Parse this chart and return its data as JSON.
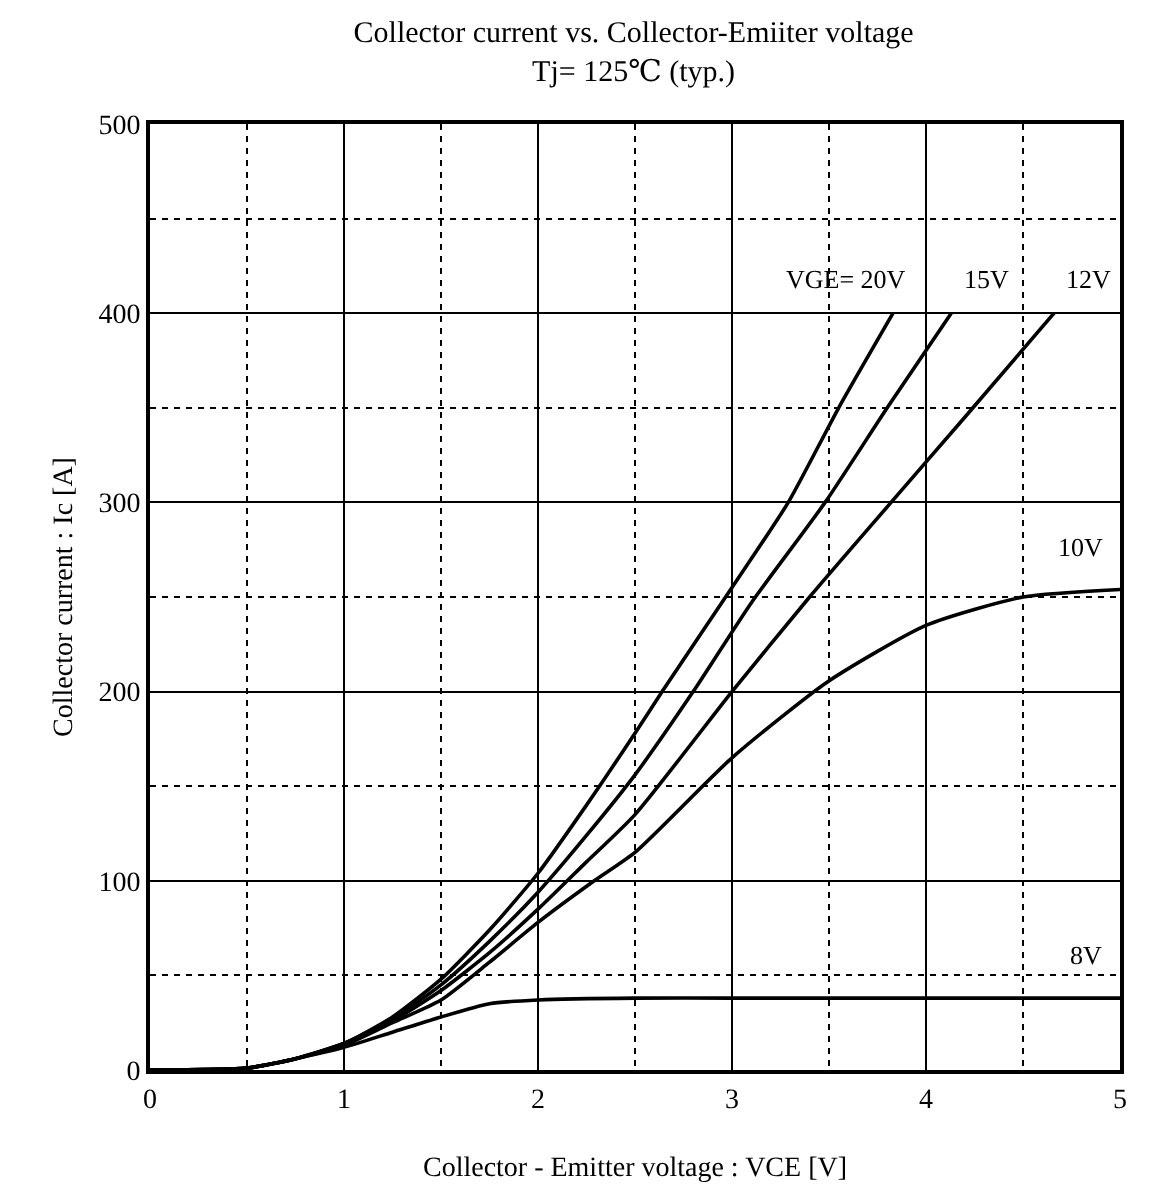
{
  "chart_data": {
    "type": "line",
    "title": "Collector current vs. Collector-Emiiter voltage",
    "subtitle": "Tj= 125℃ (typ.)",
    "xlabel": "Collector - Emitter voltage : VCE [V]",
    "ylabel": "Collector current : Ic [A]",
    "series": [
      {
        "name": "VGE= 20V",
        "color": "#000000",
        "x": [
          0,
          0.5,
          0.75,
          1,
          1.25,
          1.5,
          1.75,
          2,
          2.25,
          2.5,
          2.64,
          3,
          3.29,
          3.55,
          3.83
        ],
        "values": [
          0,
          1,
          6,
          14,
          28,
          48,
          74,
          104,
          140,
          178,
          200,
          255,
          300,
          350,
          400
        ]
      },
      {
        "name": "15V",
        "color": "#000000",
        "x": [
          0,
          0.5,
          0.75,
          1,
          1.25,
          1.5,
          1.75,
          2,
          2.25,
          2.5,
          2.8,
          3.1,
          3.48,
          3.8,
          4.13
        ],
        "values": [
          0,
          1,
          6,
          14,
          27,
          45,
          68,
          94,
          124,
          156,
          200,
          247,
          300,
          350,
          400
        ]
      },
      {
        "name": "12V",
        "color": "#000000",
        "x": [
          0,
          0.5,
          0.75,
          1,
          1.25,
          1.5,
          1.75,
          2,
          2.25,
          2.5,
          3,
          3.4,
          3.82,
          4.2,
          4.66
        ],
        "values": [
          0,
          1,
          6,
          14,
          26,
          42,
          62,
          85,
          110,
          135,
          200,
          250,
          300,
          345,
          400
        ]
      },
      {
        "name": "10V",
        "color": "#000000",
        "x": [
          0,
          0.5,
          0.75,
          1,
          1.25,
          1.5,
          1.75,
          2,
          2.29,
          2.5,
          3,
          3.49,
          4,
          4.5,
          5
        ],
        "values": [
          0,
          1,
          6,
          13,
          25,
          37,
          57,
          78,
          100,
          115,
          165,
          205,
          235,
          250,
          254
        ]
      },
      {
        "name": "8V",
        "color": "#000000",
        "x": [
          0,
          0.5,
          0.75,
          1,
          1.25,
          1.5,
          1.75,
          2,
          2.5,
          3,
          4,
          5
        ],
        "values": [
          0,
          1,
          6,
          12,
          20,
          28,
          35,
          37,
          38,
          38,
          38,
          38
        ]
      }
    ],
    "xlim": [
      0,
      5
    ],
    "xticks": [
      0,
      1,
      2,
      3,
      4,
      5
    ],
    "ylim": [
      0,
      500
    ],
    "yticks": [
      0,
      100,
      200,
      300,
      400,
      500
    ],
    "grid": true,
    "legend": false,
    "marker": "none",
    "line_style": "solid"
  }
}
